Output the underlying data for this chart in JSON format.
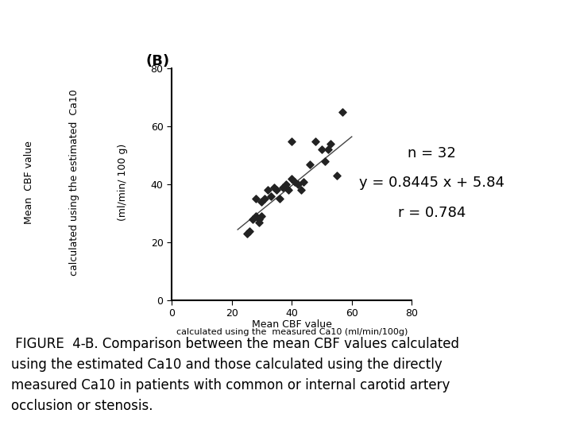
{
  "scatter_x": [
    25,
    26,
    27,
    28,
    28,
    29,
    29,
    30,
    30,
    31,
    32,
    33,
    34,
    35,
    36,
    37,
    38,
    39,
    40,
    40,
    41,
    42,
    43,
    44,
    46,
    48,
    50,
    51,
    52,
    53,
    55,
    57
  ],
  "scatter_y": [
    23,
    24,
    28,
    29,
    35,
    27,
    28,
    29,
    34,
    35,
    38,
    36,
    39,
    38,
    35,
    39,
    40,
    38,
    42,
    55,
    41,
    40,
    38,
    41,
    47,
    55,
    52,
    48,
    52,
    54,
    43,
    65
  ],
  "slope": 0.8445,
  "intercept": 5.84,
  "x_line_start": 22,
  "x_line_end": 60,
  "xlim": [
    0,
    80
  ],
  "ylim": [
    0,
    80
  ],
  "xticks": [
    0,
    20,
    40,
    60,
    80
  ],
  "yticks": [
    0,
    20,
    40,
    60,
    80
  ],
  "xlabel_line1": "Mean CBF value",
  "xlabel_line2": "calculated using the  measured Ca10 (ml/min/100g)",
  "ylabel_line1": "Mean  CBF value",
  "ylabel_line2": "calculated using the estimated  Ca10",
  "ylabel_line3": "(ml/min/ 100 g)",
  "panel_label": "(B)",
  "annotation_line1": "n = 32",
  "annotation_line2": "y = 0.8445 x + 5.84",
  "annotation_line3": "r = 0.784",
  "figure_caption_line1": " FIGURE  4-B. Comparison between the mean CBF values calculated",
  "figure_caption_line2": "using the estimated Ca10 and those calculated using the directly",
  "figure_caption_line3": "measured Ca10 in patients with common or internal carotid artery",
  "figure_caption_line4": "occlusion or stenosis.",
  "marker_color": "#222222",
  "line_color": "#444444",
  "bg_color": "#ffffff",
  "marker_size": 22,
  "annotation_fontsize": 13,
  "axis_label_fontsize": 9,
  "tick_fontsize": 9,
  "panel_fontsize": 13,
  "caption_fontsize": 12
}
